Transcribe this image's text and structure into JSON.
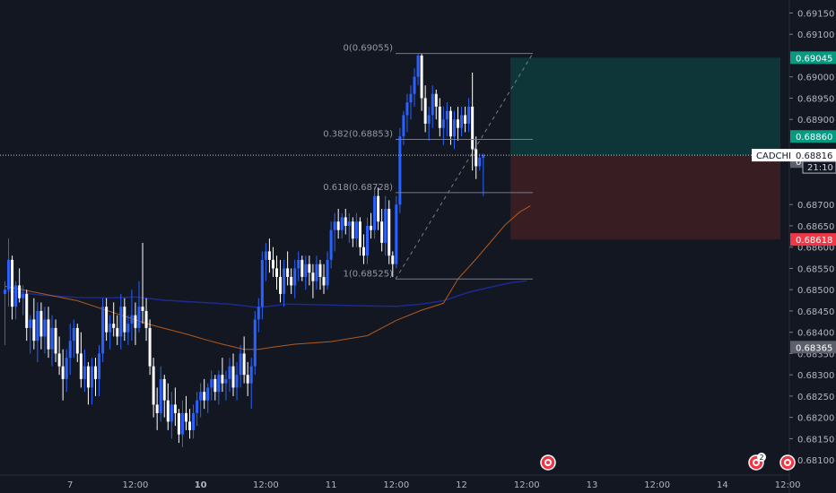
{
  "chart_data": {
    "type": "candlestick",
    "symbol": "CADCHF",
    "countdown": "21:10",
    "colors": {
      "up": "#2962ff",
      "down": "#ffffff",
      "ma_fast": "#b25a1a",
      "ma_slow": "#1c2a8f",
      "profit": "#0e3a3c",
      "loss": "#3d1e24",
      "tp": "#089981",
      "sl": "#f23645"
    },
    "ylim": [
      0.68075,
      0.6917
    ],
    "price_ticks": [
      "0.69150",
      "0.69100",
      "0.69000",
      "0.68950",
      "0.68900",
      "0.68700",
      "0.68650",
      "0.68600",
      "0.68550",
      "0.68500",
      "0.68450",
      "0.68400",
      "0.68350",
      "0.68300",
      "0.68250",
      "0.68200",
      "0.68150",
      "0.68100"
    ],
    "price_badges": [
      {
        "label": "0.69045",
        "value": 0.69045,
        "color": "#089981"
      },
      {
        "label": "0.68860",
        "value": 0.6886,
        "color": "#089981"
      },
      {
        "label": "0.68801",
        "value": 0.68801,
        "color": "#5d606b"
      },
      {
        "label": "0.68618",
        "value": 0.68618,
        "color": "#f23645"
      },
      {
        "label": "0.68365",
        "value": 0.68365,
        "color": "#5d606b"
      }
    ],
    "last_price": 0.68816,
    "x_labels": [
      {
        "label": "7",
        "bar": 18,
        "bold": false
      },
      {
        "label": "12:00",
        "bar": 36,
        "bold": false
      },
      {
        "label": "10",
        "bar": 54,
        "bold": true
      },
      {
        "label": "12:00",
        "bar": 72,
        "bold": false
      },
      {
        "label": "11",
        "bar": 90,
        "bold": false
      },
      {
        "label": "12:00",
        "bar": 108,
        "bold": false
      },
      {
        "label": "12",
        "bar": 126,
        "bold": false
      },
      {
        "label": "12:00",
        "bar": 144,
        "bold": false
      },
      {
        "label": "13",
        "bar": 162,
        "bold": false
      },
      {
        "label": "12:00",
        "bar": 180,
        "bold": false
      },
      {
        "label": "14",
        "bar": 198,
        "bold": false
      },
      {
        "label": "12:00",
        "bar": 216,
        "bold": false
      }
    ],
    "fib_levels": [
      {
        "label": "0(0.69055)",
        "value": 0.69055
      },
      {
        "label": "0.382(0.68853)",
        "value": 0.68853
      },
      {
        "label": "0.618(0.68728)",
        "value": 0.68728
      },
      {
        "label": "1(0.68525)",
        "value": 0.68525
      }
    ],
    "position": {
      "entry": 0.68816,
      "target": 0.69045,
      "stop": 0.68618,
      "start_bar": 139.5,
      "end_bar": 214
    },
    "candles": [
      [
        0.6849,
        0.6852,
        0.6837,
        0.685
      ],
      [
        0.685,
        0.6862,
        0.6846,
        0.6857
      ],
      [
        0.6857,
        0.6858,
        0.6843,
        0.6846
      ],
      [
        0.6846,
        0.6852,
        0.6843,
        0.6851
      ],
      [
        0.6851,
        0.6855,
        0.6847,
        0.6848
      ],
      [
        0.6848,
        0.6851,
        0.6844,
        0.6849
      ],
      [
        0.6849,
        0.685,
        0.6838,
        0.6841
      ],
      [
        0.6841,
        0.6844,
        0.6835,
        0.6843
      ],
      [
        0.6843,
        0.6848,
        0.6836,
        0.6838
      ],
      [
        0.6838,
        0.6847,
        0.6833,
        0.6845
      ],
      [
        0.6845,
        0.6847,
        0.6836,
        0.6839
      ],
      [
        0.6839,
        0.6846,
        0.6835,
        0.6843
      ],
      [
        0.6843,
        0.6846,
        0.6834,
        0.6836
      ],
      [
        0.6836,
        0.6844,
        0.6832,
        0.6841
      ],
      [
        0.6841,
        0.6843,
        0.6833,
        0.6835
      ],
      [
        0.6835,
        0.6839,
        0.683,
        0.6832
      ],
      [
        0.6832,
        0.6836,
        0.6824,
        0.6829
      ],
      [
        0.6829,
        0.6836,
        0.6826,
        0.6834
      ],
      [
        0.6834,
        0.6842,
        0.683,
        0.6838
      ],
      [
        0.6838,
        0.6843,
        0.6834,
        0.6841
      ],
      [
        0.6841,
        0.6842,
        0.6833,
        0.6835
      ],
      [
        0.6835,
        0.684,
        0.6827,
        0.6829
      ],
      [
        0.6829,
        0.6836,
        0.6826,
        0.6832
      ],
      [
        0.6832,
        0.6833,
        0.6823,
        0.6827
      ],
      [
        0.6827,
        0.6834,
        0.6823,
        0.6832
      ],
      [
        0.6832,
        0.6834,
        0.6825,
        0.6829
      ],
      [
        0.6829,
        0.6837,
        0.6825,
        0.6835
      ],
      [
        0.6835,
        0.6848,
        0.6833,
        0.6846
      ],
      [
        0.6846,
        0.6848,
        0.6838,
        0.684
      ],
      [
        0.684,
        0.6844,
        0.6836,
        0.6842
      ],
      [
        0.6842,
        0.6847,
        0.6839,
        0.6841
      ],
      [
        0.6841,
        0.6844,
        0.6837,
        0.6839
      ],
      [
        0.6839,
        0.6849,
        0.6836,
        0.6846
      ],
      [
        0.6846,
        0.6848,
        0.6838,
        0.684
      ],
      [
        0.684,
        0.6844,
        0.6837,
        0.6842
      ],
      [
        0.6842,
        0.685,
        0.6838,
        0.6844
      ],
      [
        0.6844,
        0.6847,
        0.6837,
        0.6841
      ],
      [
        0.6841,
        0.6852,
        0.684,
        0.6846
      ],
      [
        0.6846,
        0.6861,
        0.6842,
        0.6845
      ],
      [
        0.6845,
        0.6848,
        0.6838,
        0.6841
      ],
      [
        0.6841,
        0.6843,
        0.683,
        0.6832
      ],
      [
        0.6832,
        0.6834,
        0.682,
        0.6823
      ],
      [
        0.6823,
        0.6827,
        0.6817,
        0.6821
      ],
      [
        0.6821,
        0.6832,
        0.6819,
        0.6829
      ],
      [
        0.6829,
        0.683,
        0.682,
        0.6824
      ],
      [
        0.6824,
        0.6828,
        0.6817,
        0.6819
      ],
      [
        0.6819,
        0.6826,
        0.6815,
        0.6823
      ],
      [
        0.6823,
        0.6827,
        0.6818,
        0.6821
      ],
      [
        0.6821,
        0.6822,
        0.6814,
        0.6816
      ],
      [
        0.6816,
        0.6824,
        0.6813,
        0.6821
      ],
      [
        0.6821,
        0.6825,
        0.6817,
        0.6819
      ],
      [
        0.6819,
        0.6822,
        0.6815,
        0.6817
      ],
      [
        0.6817,
        0.6823,
        0.6815,
        0.6821
      ],
      [
        0.6821,
        0.6826,
        0.6818,
        0.6824
      ],
      [
        0.6824,
        0.6828,
        0.682,
        0.6826
      ],
      [
        0.6826,
        0.6829,
        0.6822,
        0.6824
      ],
      [
        0.6824,
        0.6828,
        0.6821,
        0.6827
      ],
      [
        0.6827,
        0.6831,
        0.6824,
        0.6829
      ],
      [
        0.6829,
        0.683,
        0.6824,
        0.6826
      ],
      [
        0.6826,
        0.6831,
        0.6823,
        0.683
      ],
      [
        0.683,
        0.6834,
        0.6826,
        0.6828
      ],
      [
        0.6828,
        0.6831,
        0.6824,
        0.6829
      ],
      [
        0.6829,
        0.6834,
        0.6826,
        0.6832
      ],
      [
        0.6832,
        0.6835,
        0.6825,
        0.6827
      ],
      [
        0.6827,
        0.6833,
        0.6824,
        0.683
      ],
      [
        0.683,
        0.6837,
        0.6827,
        0.6835
      ],
      [
        0.6835,
        0.6839,
        0.6828,
        0.683
      ],
      [
        0.683,
        0.6833,
        0.6825,
        0.6828
      ],
      [
        0.6828,
        0.6834,
        0.6822,
        0.6832
      ],
      [
        0.6832,
        0.6845,
        0.683,
        0.6843
      ],
      [
        0.6843,
        0.6848,
        0.684,
        0.6846
      ],
      [
        0.6846,
        0.6859,
        0.6843,
        0.6857
      ],
      [
        0.6857,
        0.6861,
        0.6852,
        0.6859
      ],
      [
        0.6859,
        0.6862,
        0.6854,
        0.6857
      ],
      [
        0.6857,
        0.686,
        0.6853,
        0.6855
      ],
      [
        0.6855,
        0.6858,
        0.685,
        0.6853
      ],
      [
        0.6853,
        0.6857,
        0.6847,
        0.6849
      ],
      [
        0.6849,
        0.6857,
        0.6846,
        0.6855
      ],
      [
        0.6855,
        0.6859,
        0.6851,
        0.6853
      ],
      [
        0.6853,
        0.6855,
        0.6849,
        0.6851
      ],
      [
        0.6851,
        0.6857,
        0.6848,
        0.6855
      ],
      [
        0.6855,
        0.6859,
        0.6852,
        0.6857
      ],
      [
        0.6857,
        0.6858,
        0.6852,
        0.6853
      ],
      [
        0.6853,
        0.6858,
        0.685,
        0.6856
      ],
      [
        0.6856,
        0.6858,
        0.6851,
        0.6854
      ],
      [
        0.6854,
        0.6856,
        0.6848,
        0.6852
      ],
      [
        0.6852,
        0.6858,
        0.685,
        0.6856
      ],
      [
        0.6856,
        0.6857,
        0.685,
        0.6853
      ],
      [
        0.6853,
        0.6856,
        0.6849,
        0.6851
      ],
      [
        0.6851,
        0.6859,
        0.685,
        0.6857
      ],
      [
        0.6857,
        0.6866,
        0.6855,
        0.6864
      ],
      [
        0.6864,
        0.6868,
        0.6859,
        0.6866
      ],
      [
        0.6866,
        0.6869,
        0.6862,
        0.6864
      ],
      [
        0.6864,
        0.6868,
        0.6862,
        0.6867
      ],
      [
        0.6867,
        0.6869,
        0.6863,
        0.6865
      ],
      [
        0.6865,
        0.6868,
        0.6861,
        0.6866
      ],
      [
        0.6866,
        0.6867,
        0.686,
        0.6862
      ],
      [
        0.6862,
        0.6868,
        0.686,
        0.6866
      ],
      [
        0.6866,
        0.6867,
        0.6858,
        0.686
      ],
      [
        0.686,
        0.6863,
        0.6856,
        0.6858
      ],
      [
        0.6858,
        0.6867,
        0.6856,
        0.6865
      ],
      [
        0.6865,
        0.6868,
        0.6862,
        0.6864
      ],
      [
        0.6864,
        0.6874,
        0.6862,
        0.6872
      ],
      [
        0.6872,
        0.6874,
        0.6864,
        0.6866
      ],
      [
        0.6866,
        0.6869,
        0.6859,
        0.6861
      ],
      [
        0.6861,
        0.6872,
        0.6858,
        0.6869
      ],
      [
        0.6869,
        0.6871,
        0.6856,
        0.6858
      ],
      [
        0.6858,
        0.6859,
        0.6853,
        0.6856
      ],
      [
        0.6856,
        0.6872,
        0.6855,
        0.687
      ],
      [
        0.687,
        0.6888,
        0.6868,
        0.6886
      ],
      [
        0.6886,
        0.6892,
        0.6884,
        0.6891
      ],
      [
        0.6891,
        0.6896,
        0.6887,
        0.6894
      ],
      [
        0.6894,
        0.6898,
        0.689,
        0.6896
      ],
      [
        0.6896,
        0.6902,
        0.6893,
        0.69
      ],
      [
        0.69,
        0.69055,
        0.6898,
        0.6905
      ],
      [
        0.6905,
        0.69055,
        0.6892,
        0.6895
      ],
      [
        0.6895,
        0.6898,
        0.6887,
        0.6889
      ],
      [
        0.6889,
        0.6893,
        0.6885,
        0.6891
      ],
      [
        0.6891,
        0.6898,
        0.6888,
        0.6896
      ],
      [
        0.6896,
        0.6897,
        0.689,
        0.6893
      ],
      [
        0.6893,
        0.6895,
        0.6886,
        0.6888
      ],
      [
        0.6888,
        0.6893,
        0.6884,
        0.689
      ],
      [
        0.689,
        0.6894,
        0.6886,
        0.6892
      ],
      [
        0.6892,
        0.6893,
        0.6884,
        0.6886
      ],
      [
        0.6886,
        0.6892,
        0.6883,
        0.689
      ],
      [
        0.689,
        0.6893,
        0.6885,
        0.6888
      ],
      [
        0.6888,
        0.6893,
        0.6886,
        0.6891
      ],
      [
        0.6891,
        0.6893,
        0.6887,
        0.6889
      ],
      [
        0.6889,
        0.6895,
        0.6887,
        0.6893
      ],
      [
        0.6893,
        0.6901,
        0.6878,
        0.6883
      ],
      [
        0.6883,
        0.6886,
        0.6876,
        0.6879
      ],
      [
        0.6879,
        0.6882,
        0.6878,
        0.6881
      ],
      [
        0.6881,
        0.6882,
        0.6872,
        0.68816
      ]
    ],
    "ma_fast": [
      [
        0,
        0.68508
      ],
      [
        10,
        0.68491
      ],
      [
        20,
        0.68474
      ],
      [
        30,
        0.68446
      ],
      [
        40,
        0.68418
      ],
      [
        50,
        0.68396
      ],
      [
        56,
        0.68381
      ],
      [
        60,
        0.68372
      ],
      [
        66,
        0.6836
      ],
      [
        70,
        0.6836
      ],
      [
        74,
        0.68365
      ],
      [
        80,
        0.68372
      ],
      [
        90,
        0.68378
      ],
      [
        100,
        0.68392
      ],
      [
        108,
        0.68428
      ],
      [
        115,
        0.68452
      ],
      [
        121,
        0.68468
      ],
      [
        125,
        0.68525
      ],
      [
        130,
        0.68572
      ],
      [
        134,
        0.68612
      ],
      [
        138,
        0.68652
      ],
      [
        142,
        0.68682
      ],
      [
        145,
        0.68697
      ]
    ],
    "ma_slow": [
      [
        0,
        0.68498
      ],
      [
        10,
        0.68487
      ],
      [
        20,
        0.68482
      ],
      [
        30,
        0.68481
      ],
      [
        36,
        0.68483
      ],
      [
        44,
        0.68475
      ],
      [
        54,
        0.6847
      ],
      [
        62,
        0.68466
      ],
      [
        70,
        0.68458
      ],
      [
        78,
        0.68466
      ],
      [
        90,
        0.68464
      ],
      [
        100,
        0.68462
      ],
      [
        108,
        0.68461
      ],
      [
        115,
        0.68466
      ],
      [
        121,
        0.68474
      ],
      [
        128,
        0.68494
      ],
      [
        135,
        0.68508
      ],
      [
        140,
        0.68517
      ],
      [
        144,
        0.68521
      ]
    ]
  }
}
